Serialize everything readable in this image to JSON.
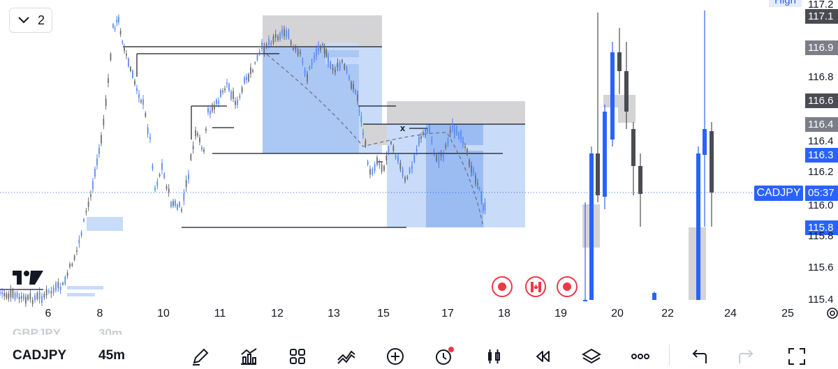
{
  "header": {
    "collapse_count": "2"
  },
  "price_axis": {
    "high_label": "High",
    "labels": [
      {
        "text": "117.2",
        "style": "plain"
      },
      {
        "text": "117.1",
        "style": "dark"
      },
      {
        "text": "116.9",
        "style": "grey"
      },
      {
        "text": "116.8",
        "style": "plain"
      },
      {
        "text": "116.6",
        "style": "dark"
      },
      {
        "text": "116.4",
        "style": "grey"
      },
      {
        "text": "116.4",
        "style": "plain"
      },
      {
        "text": "116.3",
        "style": "blue"
      },
      {
        "text": "116.2",
        "style": "plain"
      },
      {
        "text": "116.0",
        "style": "plain"
      },
      {
        "text": "115.8",
        "style": "blue"
      },
      {
        "text": "115.8",
        "style": "plain"
      },
      {
        "text": "115.6",
        "style": "plain"
      },
      {
        "text": "115.4",
        "style": "plain"
      }
    ],
    "symbol_tag": "CADJPY",
    "countdown": "05:37"
  },
  "time_axis": [
    "6",
    "8",
    "10",
    "11",
    "12",
    "13",
    "15",
    "17",
    "18",
    "19",
    "20",
    "22",
    "24",
    "25"
  ],
  "annotations": {
    "x_marker": "x"
  },
  "events": [
    {
      "icon": "event-dot-icon"
    },
    {
      "icon": "canada-flag-icon"
    },
    {
      "icon": "event-dot-icon"
    }
  ],
  "bottom_bar": {
    "previous_symbol": "GBPJPY",
    "previous_timeframe": "30m",
    "symbol": "CADJPY",
    "timeframe": "45m",
    "tools": [
      "pencil-icon",
      "indicators-icon",
      "layout-grid-icon",
      "drawings-icon",
      "add-icon",
      "alert-clock-icon",
      "candles-icon",
      "replay-icon",
      "layers-icon",
      "more-icon",
      "undo-icon",
      "redo-icon",
      "fullscreen-icon"
    ]
  },
  "colors": {
    "bull_candle": "#2962ff",
    "bear_candle": "#4a4c52",
    "zone_blue": "#a9c6f4",
    "zone_grey": "#c9c9cc",
    "event": "#f23645"
  }
}
